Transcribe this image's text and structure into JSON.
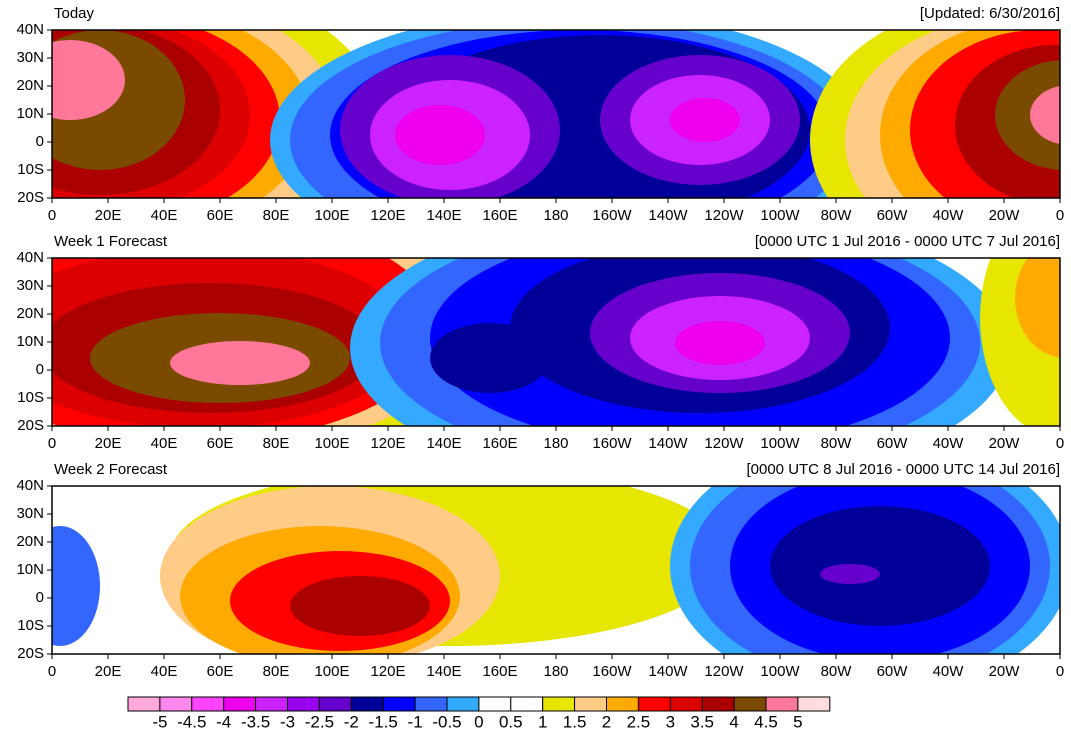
{
  "panels": [
    {
      "title": "Today",
      "subtitle": "[Updated: 6/30/2016]"
    },
    {
      "title": "Week 1 Forecast",
      "subtitle": "[0000 UTC 1 Jul 2016 - 0000 UTC 7 Jul 2016]"
    },
    {
      "title": "Week 2 Forecast",
      "subtitle": "[0000 UTC 8 Jul 2016 - 0000 UTC 14 Jul 2016]"
    }
  ],
  "lat_labels": [
    "40N",
    "30N",
    "20N",
    "10N",
    "0",
    "10S",
    "20S"
  ],
  "lon_labels": [
    "0",
    "20E",
    "40E",
    "60E",
    "80E",
    "100E",
    "120E",
    "140E",
    "160E",
    "180",
    "160W",
    "140W",
    "120W",
    "100W",
    "80W",
    "60W",
    "40W",
    "20W",
    "0"
  ],
  "colorbar": {
    "levels": [
      -5,
      -4.5,
      -4,
      -3.5,
      -3,
      -2.5,
      -2,
      -1.5,
      -1,
      -0.5,
      0,
      0.5,
      1,
      1.5,
      2,
      2.5,
      3,
      3.5,
      4,
      4.5,
      5
    ],
    "colors": [
      "#ffaadd",
      "#ff88ee",
      "#ff44ff",
      "#ee00ee",
      "#cc22ff",
      "#9900ee",
      "#6600cc",
      "#000099",
      "#0000ff",
      "#3366ff",
      "#33aaff",
      "#ffffff",
      "#ffffff",
      "#e6e600",
      "#ffcc88",
      "#ffaa00",
      "#ff0000",
      "#dd0000",
      "#aa0000",
      "#7a4a00",
      "#ff7799",
      "#ffdddd"
    ]
  }
}
